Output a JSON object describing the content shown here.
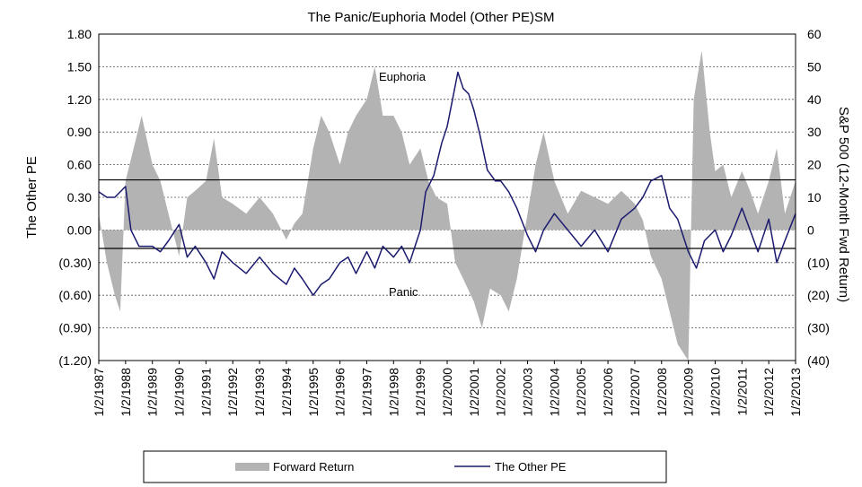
{
  "chart_data": {
    "type": "line",
    "title": "The Panic/Euphoria Model (Other PE)SM",
    "ylabel_left": "The Other PE",
    "ylabel_right": "S&P 500 (12-Month Fwd Return)",
    "ylim_left": [
      -1.2,
      1.8
    ],
    "ylim_right": [
      -40,
      60
    ],
    "yticks_left": [
      "1.80",
      "1.50",
      "1.20",
      "0.90",
      "0.60",
      "0.30",
      "0.00",
      "(0.30)",
      "(0.60)",
      "(0.90)",
      "(1.20)"
    ],
    "yticks_right": [
      "60",
      "50",
      "40",
      "30",
      "20",
      "10",
      "0",
      "(10)",
      "(20)",
      "(30)",
      "(40)"
    ],
    "xticks": [
      "1/2/1987",
      "1/2/1988",
      "1/2/1989",
      "1/2/1990",
      "1/2/1991",
      "1/2/1992",
      "1/2/1993",
      "1/2/1994",
      "1/2/1995",
      "1/2/1996",
      "1/2/1997",
      "1/2/1998",
      "1/2/1999",
      "1/2/2000",
      "1/2/2001",
      "1/2/2002",
      "1/2/2003",
      "1/2/2004",
      "1/2/2005",
      "1/2/2006",
      "1/2/2007",
      "1/2/2008",
      "1/2/2009",
      "1/2/2010",
      "1/2/2011",
      "1/2/2012",
      "1/2/2013"
    ],
    "grid": "horizontal dotted",
    "thresholds": [
      {
        "name": "Euphoria",
        "value": 0.46
      },
      {
        "name": "Panic",
        "value": -0.17
      }
    ],
    "annotations": [
      "Euphoria",
      "Panic"
    ],
    "legend": {
      "position": "bottom",
      "entries": [
        "Forward Return",
        "The Other PE"
      ]
    },
    "series": [
      {
        "name": "Forward Return",
        "axis": "right",
        "kind": "area",
        "color": "#b3b3b3",
        "x": [
          1987.0,
          1987.3,
          1987.6,
          1987.8,
          1988.0,
          1988.3,
          1988.6,
          1989.0,
          1989.3,
          1989.6,
          1990.0,
          1990.3,
          1990.6,
          1991.0,
          1991.3,
          1991.6,
          1992.0,
          1992.5,
          1993.0,
          1993.5,
          1994.0,
          1994.3,
          1994.6,
          1995.0,
          1995.3,
          1995.6,
          1996.0,
          1996.3,
          1996.6,
          1997.0,
          1997.3,
          1997.6,
          1998.0,
          1998.3,
          1998.6,
          1999.0,
          1999.3,
          1999.6,
          2000.0,
          2000.3,
          2000.6,
          2001.0,
          2001.3,
          2001.6,
          2002.0,
          2002.3,
          2002.6,
          2003.0,
          2003.3,
          2003.6,
          2004.0,
          2004.5,
          2005.0,
          2005.5,
          2006.0,
          2006.5,
          2007.0,
          2007.3,
          2007.6,
          2008.0,
          2008.3,
          2008.6,
          2009.0,
          2009.2,
          2009.5,
          2009.8,
          2010.0,
          2010.3,
          2010.6,
          2011.0,
          2011.3,
          2011.6,
          2012.0,
          2012.3,
          2012.6,
          2013.0
        ],
        "values": [
          5,
          -10,
          -20,
          -25,
          15,
          25,
          35,
          20,
          15,
          5,
          -8,
          10,
          12,
          15,
          28,
          10,
          8,
          5,
          10,
          5,
          -3,
          2,
          5,
          25,
          35,
          30,
          20,
          30,
          35,
          40,
          50,
          35,
          35,
          30,
          20,
          25,
          15,
          10,
          8,
          -10,
          -15,
          -22,
          -30,
          -18,
          -20,
          -25,
          -15,
          5,
          20,
          30,
          15,
          5,
          12,
          10,
          8,
          12,
          8,
          3,
          -8,
          -15,
          -25,
          -35,
          -42,
          40,
          55,
          30,
          18,
          20,
          10,
          18,
          12,
          5,
          15,
          25,
          5,
          15
        ]
      },
      {
        "name": "The Other PE",
        "axis": "left",
        "kind": "line",
        "color": "#1a1a6e",
        "x": [
          1987.0,
          1987.3,
          1987.6,
          1987.8,
          1988.0,
          1988.2,
          1988.5,
          1989.0,
          1989.3,
          1989.6,
          1990.0,
          1990.3,
          1990.6,
          1991.0,
          1991.3,
          1991.6,
          1992.0,
          1992.5,
          1993.0,
          1993.5,
          1994.0,
          1994.3,
          1994.6,
          1995.0,
          1995.3,
          1995.6,
          1996.0,
          1996.3,
          1996.6,
          1997.0,
          1997.3,
          1997.6,
          1998.0,
          1998.3,
          1998.6,
          1999.0,
          1999.2,
          1999.5,
          1999.8,
          2000.0,
          2000.2,
          2000.4,
          2000.6,
          2000.8,
          2001.0,
          2001.2,
          2001.5,
          2001.8,
          2002.0,
          2002.3,
          2002.6,
          2003.0,
          2003.3,
          2003.6,
          2004.0,
          2004.5,
          2005.0,
          2005.5,
          2006.0,
          2006.5,
          2007.0,
          2007.3,
          2007.6,
          2008.0,
          2008.3,
          2008.6,
          2009.0,
          2009.3,
          2009.6,
          2010.0,
          2010.3,
          2010.6,
          2011.0,
          2011.3,
          2011.6,
          2012.0,
          2012.3,
          2012.6,
          2013.0
        ],
        "values": [
          0.35,
          0.3,
          0.3,
          0.35,
          0.4,
          0.0,
          -0.15,
          -0.15,
          -0.2,
          -0.1,
          0.05,
          -0.25,
          -0.15,
          -0.3,
          -0.45,
          -0.2,
          -0.3,
          -0.4,
          -0.25,
          -0.4,
          -0.5,
          -0.35,
          -0.45,
          -0.6,
          -0.5,
          -0.45,
          -0.3,
          -0.25,
          -0.4,
          -0.2,
          -0.35,
          -0.15,
          -0.25,
          -0.15,
          -0.3,
          0.0,
          0.35,
          0.5,
          0.8,
          0.95,
          1.2,
          1.45,
          1.3,
          1.25,
          1.1,
          0.9,
          0.55,
          0.45,
          0.45,
          0.35,
          0.2,
          -0.05,
          -0.2,
          0.0,
          0.15,
          0.0,
          -0.15,
          0.0,
          -0.2,
          0.1,
          0.2,
          0.3,
          0.45,
          0.5,
          0.2,
          0.1,
          -0.2,
          -0.35,
          -0.1,
          0.0,
          -0.2,
          -0.05,
          0.2,
          0.0,
          -0.2,
          0.1,
          -0.3,
          -0.1,
          0.15
        ]
      }
    ]
  }
}
